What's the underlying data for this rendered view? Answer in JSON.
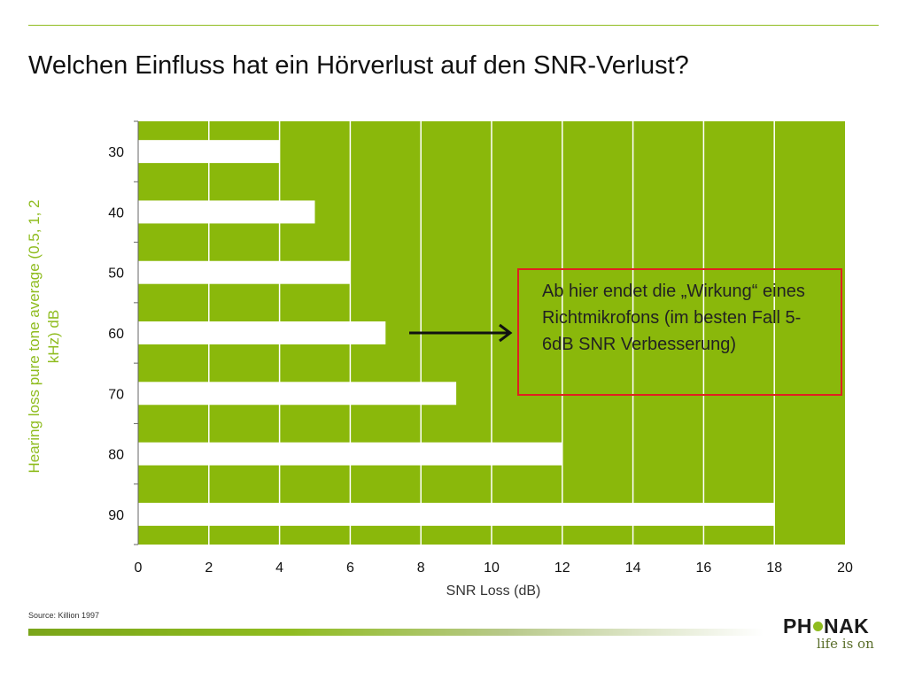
{
  "slide": {
    "title": "Welchen Einfluss hat ein Hörverlust auf den SNR-Verlust?",
    "source": "Source: Killion 1997"
  },
  "callout": {
    "text": "Ab hier endet die „Wirkung“ eines Richtmikrofons (im besten Fall 5-6dB SNR Verbesserung)"
  },
  "logo": {
    "brand_left": "PH",
    "brand_right": "NAK",
    "tagline": "life is on"
  },
  "colors": {
    "plot_background": "#8ab80b",
    "bar_fill": "#ffffff",
    "gridline": "#ffffff",
    "callout_border": "#e02020",
    "axis_title": "#8fbc1f"
  },
  "chart_data": {
    "type": "bar",
    "orientation": "horizontal",
    "categories": [
      "30",
      "40",
      "50",
      "60",
      "70",
      "80",
      "90"
    ],
    "values": [
      4,
      5,
      6,
      7,
      9,
      12,
      18
    ],
    "xlabel": "SNR Loss (dB)",
    "ylabel": "Hearing loss pure tone average (0.5, 1, 2 kHz) dB",
    "xlim": [
      0,
      20
    ],
    "xticks": [
      0,
      2,
      4,
      6,
      8,
      10,
      12,
      14,
      16,
      18,
      20
    ],
    "grid": "vertical",
    "legend": "none"
  }
}
